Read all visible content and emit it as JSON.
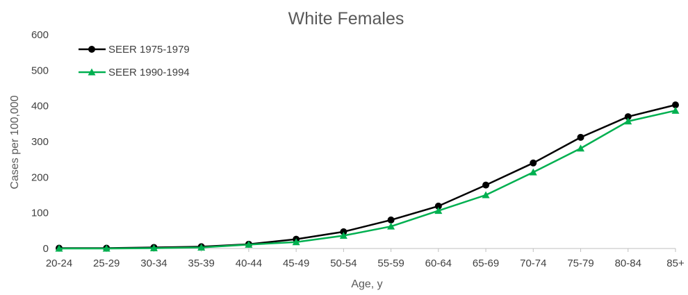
{
  "chart_data": {
    "type": "line",
    "title": "White Females",
    "xlabel": "Age, y",
    "ylabel": "Cases per 100,000",
    "ylim": [
      0,
      600
    ],
    "yticks": [
      "0",
      "100",
      "200",
      "300",
      "400",
      "500",
      "600"
    ],
    "categories": [
      "20-24",
      "25-29",
      "30-34",
      "35-39",
      "40-44",
      "45-49",
      "50-54",
      "55-59",
      "60-64",
      "65-69",
      "70-74",
      "75-79",
      "80-84",
      "85+"
    ],
    "grid": false,
    "legend_position": "top-left",
    "series": [
      {
        "name": "SEER 1975-1979",
        "color": "#000000",
        "marker": "circle",
        "values": [
          1,
          1,
          3,
          5,
          12,
          26,
          47,
          80,
          119,
          178,
          240,
          312,
          370,
          403
        ]
      },
      {
        "name": "SEER 1990-1994",
        "color": "#00b050",
        "marker": "triangle",
        "values": [
          0,
          0,
          1,
          3,
          11,
          18,
          36,
          62,
          106,
          150,
          214,
          281,
          357,
          387
        ]
      }
    ]
  }
}
